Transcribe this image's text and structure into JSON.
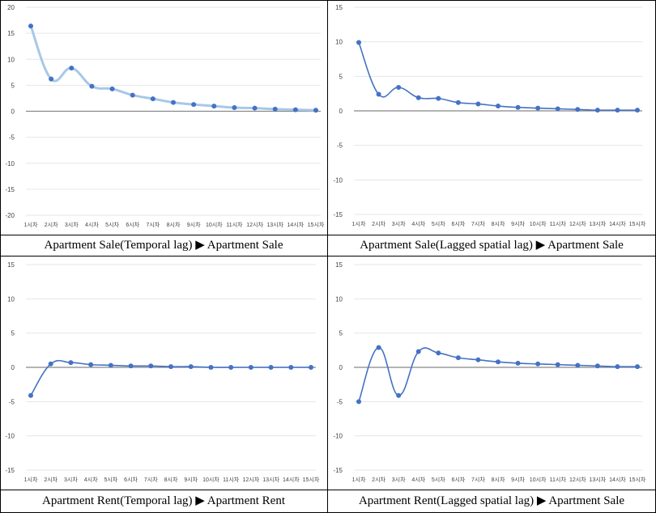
{
  "chart_data": [
    {
      "type": "line",
      "caption": "Apartment Sale(Temporal lag) ▶ Apartment Sale",
      "categories": [
        "1시차",
        "2시차",
        "3시차",
        "4시차",
        "5시차",
        "6시차",
        "7시차",
        "8시차",
        "9시차",
        "10시차",
        "11시차",
        "12시차",
        "13시차",
        "14시차",
        "15시차"
      ],
      "values": [
        16.4,
        6.2,
        8.3,
        4.8,
        4.3,
        3.1,
        2.4,
        1.7,
        1.3,
        1.0,
        0.7,
        0.6,
        0.4,
        0.3,
        0.2
      ],
      "ylim": [
        -20,
        20
      ],
      "yticks": [
        -20,
        -15,
        -10,
        -5,
        0,
        5,
        10,
        15,
        20
      ],
      "line_color": "#a7c8e8",
      "grid": true
    },
    {
      "type": "line",
      "caption": "Apartment Sale(Lagged spatial lag) ▶ Apartment Sale",
      "categories": [
        "1시차",
        "2시차",
        "3시차",
        "4시차",
        "5시차",
        "6시차",
        "7시차",
        "8시차",
        "9시차",
        "10시차",
        "11시차",
        "12시차",
        "13시차",
        "14시차",
        "15시차"
      ],
      "values": [
        9.9,
        2.4,
        3.4,
        1.9,
        1.8,
        1.2,
        1.0,
        0.7,
        0.5,
        0.4,
        0.3,
        0.2,
        0.1,
        0.1,
        0.1
      ],
      "ylim": [
        -15,
        15
      ],
      "yticks": [
        -15,
        -10,
        -5,
        0,
        5,
        10,
        15
      ],
      "line_color": "#4472c4",
      "grid": true
    },
    {
      "type": "line",
      "caption": "Apartment Rent(Temporal lag) ▶ Apartment Rent",
      "categories": [
        "1시차",
        "2시차",
        "3시차",
        "4시차",
        "5시차",
        "6시차",
        "7시차",
        "8시차",
        "9시차",
        "10시차",
        "11시차",
        "12시차",
        "13시차",
        "14시차",
        "15시차"
      ],
      "values": [
        -4.1,
        0.5,
        0.7,
        0.4,
        0.3,
        0.2,
        0.2,
        0.1,
        0.1,
        0.0,
        0.0,
        0.0,
        0.0,
        0.0,
        0.0
      ],
      "ylim": [
        -15,
        15
      ],
      "yticks": [
        -15,
        -10,
        -5,
        0,
        5,
        10,
        15
      ],
      "line_color": "#4472c4",
      "grid": true
    },
    {
      "type": "line",
      "caption": "Apartment Rent(Lagged spatial lag) ▶ Apartment Sale",
      "categories": [
        "1시차",
        "2시차",
        "3시차",
        "4시차",
        "5시차",
        "6시차",
        "7시차",
        "8시차",
        "9시차",
        "10시차",
        "11시차",
        "12시차",
        "13시차",
        "14시차",
        "15시차"
      ],
      "values": [
        -5.0,
        2.9,
        -4.1,
        2.3,
        2.1,
        1.4,
        1.1,
        0.8,
        0.6,
        0.5,
        0.4,
        0.3,
        0.2,
        0.1,
        0.1
      ],
      "ylim": [
        -15,
        15
      ],
      "yticks": [
        -15,
        -10,
        -5,
        0,
        5,
        10,
        15
      ],
      "line_color": "#4472c4",
      "grid": true
    }
  ],
  "colors": {
    "point": "#4472c4",
    "zero_line": "#888888",
    "grid": "#e6e6e6",
    "text": "#444444"
  }
}
